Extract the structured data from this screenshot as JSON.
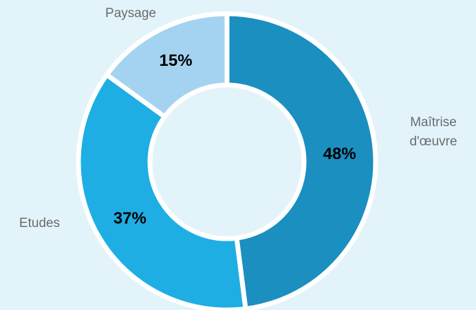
{
  "chart_data": {
    "type": "donut",
    "categories": [
      "Maîtrise d'œuvre",
      "Etudes",
      "Paysage"
    ],
    "values": [
      48,
      37,
      15
    ],
    "value_labels": [
      "48%",
      "37%",
      "15%"
    ],
    "colors": [
      "#1a8fc0",
      "#1eaee4",
      "#a3d3f0"
    ]
  }
}
